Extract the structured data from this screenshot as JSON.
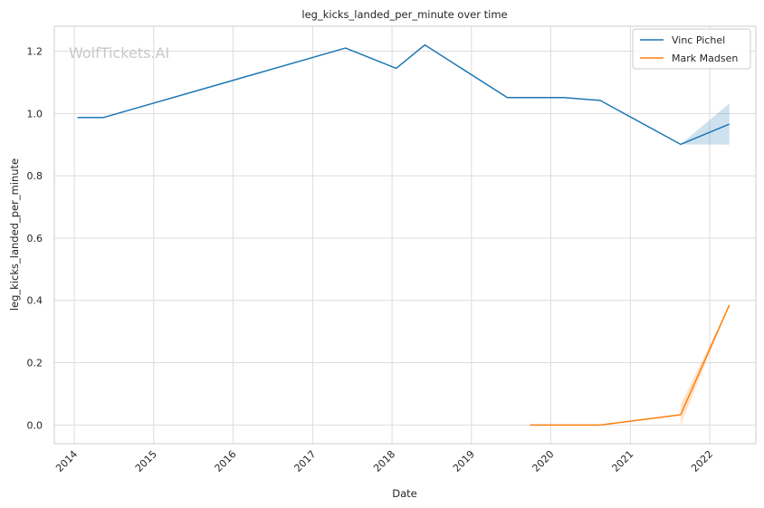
{
  "chart_data": {
    "type": "line",
    "title": "leg_kicks_landed_per_minute over time",
    "xlabel": "Date",
    "ylabel": "leg_kicks_landed_per_minute",
    "watermark": "WolfTickets.AI",
    "xlim": [
      "2013-10-01",
      "2022-08-01"
    ],
    "ylim": [
      -0.06,
      1.28
    ],
    "x_ticks": [
      "2014-01-01",
      "2015-01-01",
      "2016-01-01",
      "2017-01-01",
      "2018-01-01",
      "2019-01-01",
      "2020-01-01",
      "2021-01-01",
      "2022-01-01"
    ],
    "x_tick_labels": [
      "2014",
      "2015",
      "2016",
      "2017",
      "2018",
      "2019",
      "2020",
      "2021",
      "2022"
    ],
    "y_ticks": [
      0.0,
      0.2,
      0.4,
      0.6,
      0.8,
      1.0,
      1.2
    ],
    "y_tick_labels": [
      "0.0",
      "0.2",
      "0.4",
      "0.6",
      "0.8",
      "1.0",
      "1.2"
    ],
    "grid": true,
    "legend_position": "top-right",
    "series": [
      {
        "name": "Vinc Pichel",
        "color": "#1f77b4",
        "points": [
          {
            "x": "2014-01-15",
            "y": 0.987
          },
          {
            "x": "2014-05-15",
            "y": 0.987
          },
          {
            "x": "2017-06-01",
            "y": 1.21
          },
          {
            "x": "2018-01-20",
            "y": 1.145
          },
          {
            "x": "2018-06-01",
            "y": 1.22
          },
          {
            "x": "2019-06-15",
            "y": 1.051
          },
          {
            "x": "2020-03-01",
            "y": 1.051
          },
          {
            "x": "2020-08-15",
            "y": 1.042
          },
          {
            "x": "2021-08-20",
            "y": 0.901
          },
          {
            "x": "2022-04-01",
            "y": 0.966
          }
        ],
        "band": [
          {
            "x": "2021-08-20",
            "low": 0.901,
            "high": 0.901
          },
          {
            "x": "2022-04-01",
            "low": 0.9,
            "high": 1.032
          }
        ]
      },
      {
        "name": "Mark Madsen",
        "color": "#ff7f0e",
        "points": [
          {
            "x": "2019-09-28",
            "y": 0.0
          },
          {
            "x": "2020-08-15",
            "y": 0.0
          },
          {
            "x": "2021-08-20",
            "y": 0.033
          },
          {
            "x": "2022-04-01",
            "y": 0.385
          }
        ],
        "band": [
          {
            "x": "2021-08-20",
            "low": 0.0,
            "high": 0.066
          },
          {
            "x": "2022-04-01",
            "low": 0.385,
            "high": 0.385
          }
        ]
      }
    ]
  }
}
